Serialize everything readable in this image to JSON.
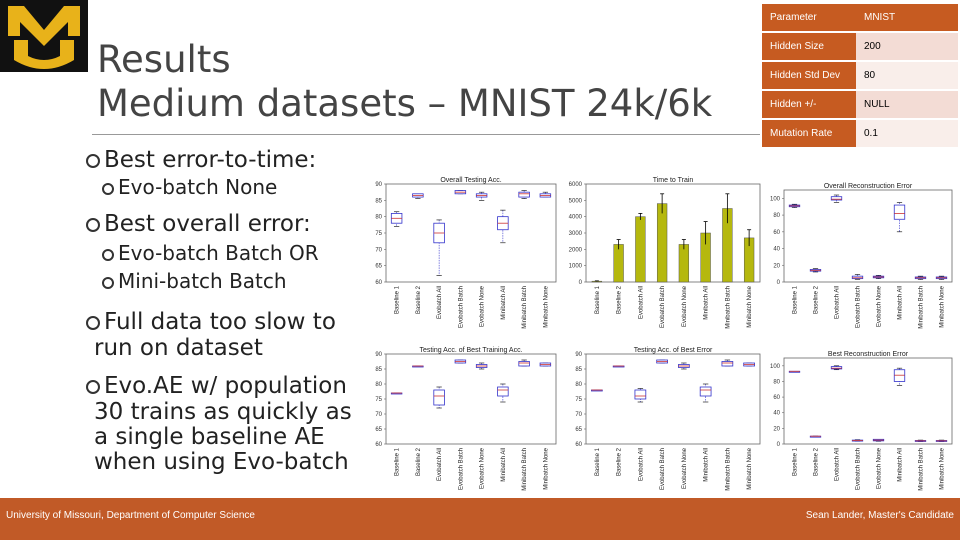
{
  "slide": {
    "title_line1": "Results",
    "title_line2": "Medium datasets – MNIST 24k/6k"
  },
  "bullets": [
    {
      "level": 1,
      "text": "Best error-to-time:"
    },
    {
      "level": 2,
      "text": "Evo-batch None"
    },
    {
      "level": 1,
      "text": "Best overall error:"
    },
    {
      "level": 2,
      "text": "Evo-batch Batch OR"
    },
    {
      "level": 2,
      "text": "Mini-batch Batch"
    },
    {
      "level": 1,
      "text": "Full data too slow to",
      "cont": "run on dataset"
    },
    {
      "level": 1,
      "text": "Evo.AE w/ population",
      "cont": "30 trains as quickly as",
      "cont2": "a single baseline AE",
      "cont3": "when using Evo-batch"
    }
  ],
  "params_table": {
    "rows": [
      {
        "key": "Parameter",
        "value": "MNIST"
      },
      {
        "key": "Hidden Size",
        "value": "200"
      },
      {
        "key": "Hidden Std Dev",
        "value": "80"
      },
      {
        "key": "Hidden +/-",
        "value": "NULL"
      },
      {
        "key": "Mutation Rate",
        "value": "0.1"
      }
    ]
  },
  "footer": {
    "left": "University of Missouri, Department of Computer Science",
    "right": "Sean Lander, Master's Candidate"
  },
  "colors": {
    "accent": "#c15a27",
    "table_key_bg": "#c65b21",
    "table_val_bg": "#f3dcd5",
    "bar_fill": "#b5b80e",
    "box_stroke": "#3333cc",
    "median_stroke": "#cc3333"
  },
  "chart_data": [
    {
      "type": "box",
      "title": "Overall Testing Acc.",
      "categories": [
        "Baseline 1",
        "Baseline 2",
        "Evobatch All",
        "Evobatch Batch",
        "Evobatch None",
        "Minibatch All",
        "Minibatch Batch",
        "Minibatch None"
      ],
      "y_ticks": [
        60,
        65,
        70,
        75,
        80,
        85,
        90
      ],
      "ylim": [
        60,
        90
      ],
      "boxes": [
        {
          "q1": 78,
          "median": 79.5,
          "q3": 81,
          "min": 77,
          "max": 81.5
        },
        {
          "q1": 86,
          "median": 86.5,
          "q3": 87,
          "min": 85.5,
          "max": 87
        },
        {
          "q1": 72,
          "median": 75,
          "q3": 78,
          "min": 62,
          "max": 79
        },
        {
          "q1": 87,
          "median": 87.5,
          "q3": 88,
          "min": 87,
          "max": 88
        },
        {
          "q1": 86,
          "median": 86.5,
          "q3": 87,
          "min": 85,
          "max": 87.5
        },
        {
          "q1": 76,
          "median": 78,
          "q3": 80,
          "min": 72,
          "max": 82
        },
        {
          "q1": 86,
          "median": 87,
          "q3": 87.5,
          "min": 85.5,
          "max": 88
        },
        {
          "q1": 86,
          "median": 86.5,
          "q3": 87,
          "min": 86,
          "max": 87.5
        }
      ]
    },
    {
      "type": "bar",
      "title": "Time to Train",
      "categories": [
        "Baseline 1",
        "Baseline 2",
        "Evobatch All",
        "Evobatch Batch",
        "Evobatch None",
        "Minibatch All",
        "Minibatch Batch",
        "Minibatch None"
      ],
      "y_ticks": [
        0,
        1000,
        2000,
        3000,
        4000,
        5000,
        6000
      ],
      "ylim": [
        0,
        6000
      ],
      "values": [
        50,
        2300,
        4000,
        4800,
        2300,
        3000,
        4500,
        2700
      ],
      "errors": [
        20,
        300,
        200,
        600,
        300,
        700,
        900,
        500
      ]
    },
    {
      "type": "box",
      "title": "Overall Reconstruction Error",
      "categories": [
        "Baseline 1",
        "Baseline 2",
        "Evobatch All",
        "Evobatch Batch",
        "Evobatch None",
        "Minibatch All",
        "Minibatch Batch",
        "Minibatch None"
      ],
      "y_ticks": [
        0,
        20,
        40,
        60,
        80,
        100
      ],
      "ylim": [
        0,
        110
      ],
      "boxes": [
        {
          "q1": 90,
          "median": 91,
          "q3": 92,
          "min": 89,
          "max": 93
        },
        {
          "q1": 13,
          "median": 14,
          "q3": 15,
          "min": 12,
          "max": 16
        },
        {
          "q1": 98,
          "median": 99,
          "q3": 102,
          "min": 95,
          "max": 104
        },
        {
          "q1": 4,
          "median": 5,
          "q3": 7,
          "min": 3,
          "max": 9
        },
        {
          "q1": 5,
          "median": 6,
          "q3": 7,
          "min": 4,
          "max": 8
        },
        {
          "q1": 75,
          "median": 82,
          "q3": 92,
          "min": 60,
          "max": 95
        },
        {
          "q1": 4,
          "median": 5,
          "q3": 6,
          "min": 3,
          "max": 7
        },
        {
          "q1": 4,
          "median": 5,
          "q3": 6,
          "min": 3,
          "max": 7
        }
      ]
    },
    {
      "type": "box",
      "title": "Testing Acc. of Best Training Acc.",
      "categories": [
        "Baseline 1",
        "Baseline 2",
        "Evobatch All",
        "Evobatch Batch",
        "Evobatch None",
        "Minibatch All",
        "Minibatch Batch",
        "Minibatch None"
      ],
      "y_ticks": [
        60,
        65,
        70,
        75,
        80,
        85,
        90
      ],
      "ylim": [
        60,
        90
      ],
      "boxes": [
        {
          "q1": 77,
          "median": 77,
          "q3": 77,
          "min": 77,
          "max": 77
        },
        {
          "q1": 86,
          "median": 86,
          "q3": 86,
          "min": 86,
          "max": 86
        },
        {
          "q1": 73,
          "median": 76,
          "q3": 78,
          "min": 72,
          "max": 79
        },
        {
          "q1": 87,
          "median": 87.5,
          "q3": 88,
          "min": 87,
          "max": 88
        },
        {
          "q1": 85.5,
          "median": 86,
          "q3": 86.5,
          "min": 85,
          "max": 87
        },
        {
          "q1": 76,
          "median": 78,
          "q3": 79,
          "min": 74,
          "max": 80
        },
        {
          "q1": 86,
          "median": 87,
          "q3": 87.5,
          "min": 86,
          "max": 88
        },
        {
          "q1": 86,
          "median": 86.5,
          "q3": 87,
          "min": 86,
          "max": 87
        }
      ]
    },
    {
      "type": "box",
      "title": "Testing Acc. of Best Error",
      "categories": [
        "Baseline 1",
        "Baseline 2",
        "Evobatch All",
        "Evobatch Batch",
        "Evobatch None",
        "Minibatch All",
        "Minibatch Batch",
        "Minibatch None"
      ],
      "y_ticks": [
        60,
        65,
        70,
        75,
        80,
        85,
        90
      ],
      "ylim": [
        60,
        90
      ],
      "boxes": [
        {
          "q1": 78,
          "median": 78,
          "q3": 78,
          "min": 78,
          "max": 78
        },
        {
          "q1": 86,
          "median": 86,
          "q3": 86,
          "min": 86,
          "max": 86
        },
        {
          "q1": 75,
          "median": 76,
          "q3": 78,
          "min": 74,
          "max": 78.5
        },
        {
          "q1": 87,
          "median": 87.5,
          "q3": 88,
          "min": 87,
          "max": 88
        },
        {
          "q1": 85.5,
          "median": 86,
          "q3": 86.5,
          "min": 85,
          "max": 87
        },
        {
          "q1": 76,
          "median": 78,
          "q3": 79,
          "min": 74,
          "max": 80
        },
        {
          "q1": 86,
          "median": 87,
          "q3": 87.5,
          "min": 86,
          "max": 88
        },
        {
          "q1": 86,
          "median": 86.5,
          "q3": 87,
          "min": 86,
          "max": 87
        }
      ]
    },
    {
      "type": "box",
      "title": "Best Reconstruction Error",
      "categories": [
        "Baseline 1",
        "Baseline 2",
        "Evobatch All",
        "Evobatch Batch",
        "Evobatch None",
        "Minibatch All",
        "Minibatch Batch",
        "Minibatch None"
      ],
      "y_ticks": [
        0,
        20,
        40,
        60,
        80,
        100
      ],
      "ylim": [
        0,
        110
      ],
      "boxes": [
        {
          "q1": 93,
          "median": 93,
          "q3": 93,
          "min": 93,
          "max": 93
        },
        {
          "q1": 10,
          "median": 10,
          "q3": 10,
          "min": 10,
          "max": 10
        },
        {
          "q1": 96,
          "median": 97,
          "q3": 99,
          "min": 95,
          "max": 100
        },
        {
          "q1": 4,
          "median": 4.5,
          "q3": 5,
          "min": 3.5,
          "max": 5.5
        },
        {
          "q1": 4,
          "median": 5,
          "q3": 6,
          "min": 3.5,
          "max": 6
        },
        {
          "q1": 80,
          "median": 88,
          "q3": 95,
          "min": 75,
          "max": 97
        },
        {
          "q1": 3.5,
          "median": 4,
          "q3": 4.5,
          "min": 3,
          "max": 5
        },
        {
          "q1": 3.5,
          "median": 4,
          "q3": 4.5,
          "min": 3,
          "max": 5
        }
      ]
    }
  ]
}
